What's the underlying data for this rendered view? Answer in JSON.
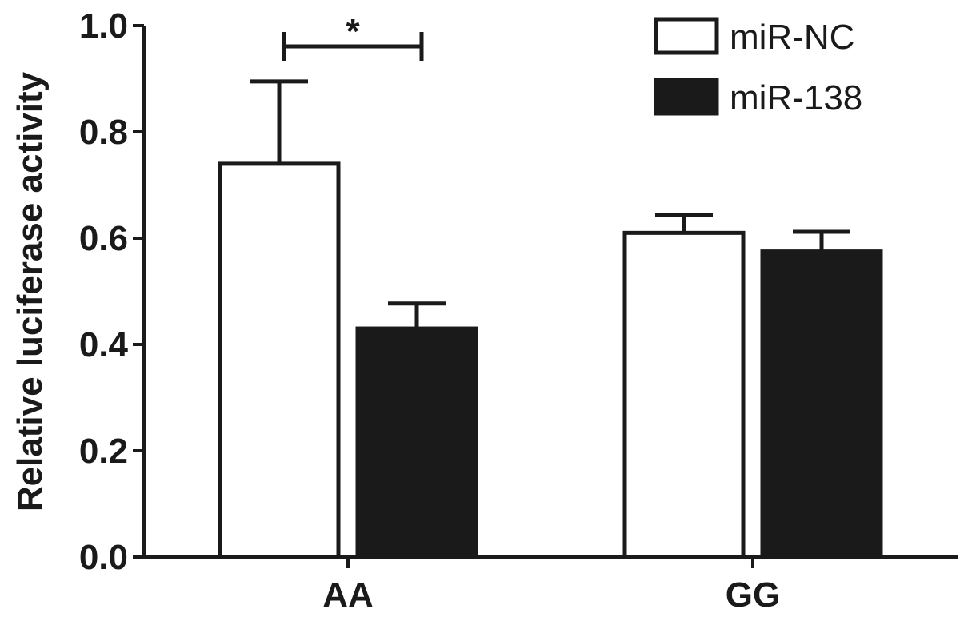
{
  "chart_data": {
    "type": "bar",
    "ylabel": "Relative luciferase activity",
    "xlabel": "",
    "categories": [
      "AA",
      "GG"
    ],
    "ylim": [
      0,
      1.0
    ],
    "yticks": [
      "0.0",
      "0.2",
      "0.4",
      "0.6",
      "0.8",
      "1.0"
    ],
    "series": [
      {
        "name": "miR-NC",
        "values": [
          0.74,
          0.61
        ],
        "errors": [
          0.155,
          0.033
        ],
        "color": "#ffffff"
      },
      {
        "name": "miR-138",
        "values": [
          0.43,
          0.575
        ],
        "errors": [
          0.047,
          0.037
        ],
        "color": "#1a1a1a"
      }
    ],
    "annotations": [
      {
        "text": "*",
        "category": "AA",
        "between": [
          "miR-NC",
          "miR-138"
        ]
      }
    ],
    "legend_position": "top-right",
    "grid": false
  }
}
